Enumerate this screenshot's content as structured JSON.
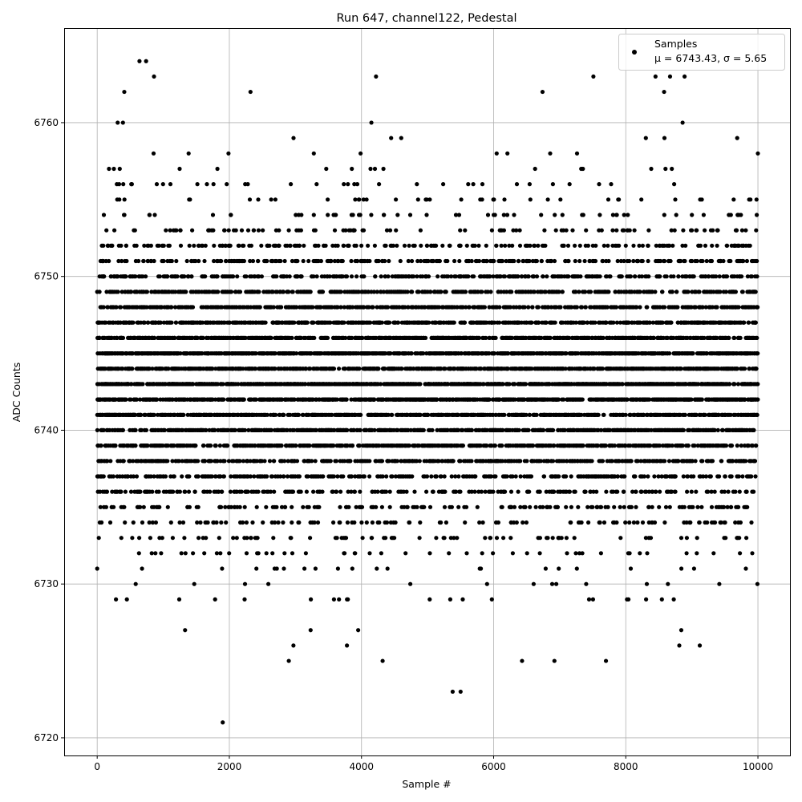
{
  "chart_data": {
    "type": "scatter",
    "title": "Run 647, channel122, Pedestal",
    "xlabel": "Sample #",
    "ylabel": "ADC Counts",
    "xlim": [
      -500,
      10485
    ],
    "ylim": [
      6718.85,
      6766.15
    ],
    "xticks": [
      0,
      2000,
      4000,
      6000,
      8000,
      10000
    ],
    "yticks": [
      6720,
      6730,
      6740,
      6750,
      6760
    ],
    "grid": true,
    "legend_position": "top-right",
    "marker_color": "#000000",
    "series": [
      {
        "name": "Samples",
        "n_samples": 10000,
        "x_range": [
          0,
          9999
        ],
        "mean": 6743.43,
        "sigma": 5.65,
        "extreme_points": [
          [
            0,
            6731
          ],
          [
            1900,
            6721
          ],
          [
            5380,
            6723
          ],
          [
            5500,
            6723
          ],
          [
            2900,
            6725
          ],
          [
            4320,
            6725
          ],
          [
            6430,
            6725
          ],
          [
            6920,
            6725
          ],
          [
            7700,
            6725
          ],
          [
            1330,
            6727
          ],
          [
            3230,
            6727
          ],
          [
            3950,
            6727
          ],
          [
            8840,
            6727
          ],
          [
            2970,
            6726
          ],
          [
            3780,
            6726
          ],
          [
            8810,
            6726
          ],
          [
            9120,
            6726
          ],
          [
            640,
            6764
          ],
          [
            740,
            6764
          ],
          [
            860,
            6763
          ],
          [
            4220,
            6763
          ],
          [
            7510,
            6763
          ],
          [
            8450,
            6763
          ],
          [
            8670,
            6763
          ],
          [
            8890,
            6763
          ],
          [
            410,
            6762
          ],
          [
            2320,
            6762
          ],
          [
            6740,
            6762
          ],
          [
            8580,
            6762
          ],
          [
            310,
            6760
          ],
          [
            390,
            6760
          ],
          [
            4150,
            6760
          ],
          [
            8860,
            6760
          ]
        ]
      }
    ],
    "legend": {
      "label": "Samples",
      "stats": "μ = 6743.43, σ = 5.65"
    }
  }
}
